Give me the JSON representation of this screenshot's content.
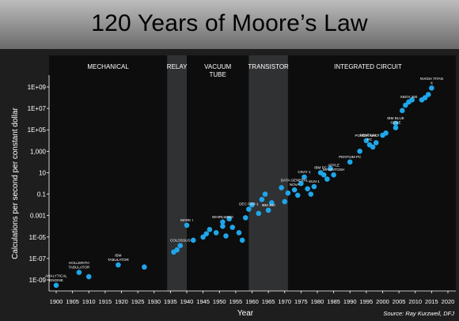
{
  "title": "120 Years of Moore’s Law",
  "colors": {
    "accent": "#1fa6ea",
    "plot_bg": "#0d0d0d",
    "band": "#2f3133"
  },
  "chart_data": {
    "type": "scatter",
    "title": "120 Years of Moore’s Law",
    "xlabel": "Year",
    "ylabel": "Calculations per second per constant dollar",
    "xlim": [
      1897,
      2020
    ],
    "ylim": [
      -10,
      10
    ],
    "y_scale": "log10",
    "x_ticks": [
      1900,
      1905,
      1910,
      1915,
      1920,
      1925,
      1930,
      1935,
      1940,
      1945,
      1950,
      1955,
      1960,
      1965,
      1970,
      1975,
      1980,
      1985,
      1990,
      1995,
      2000,
      2005,
      2010,
      2015,
      2020
    ],
    "y_ticks": [
      {
        "label": "1E+09",
        "exp": 9
      },
      {
        "label": "1E+07",
        "exp": 7
      },
      {
        "label": "1E+05",
        "exp": 5
      },
      {
        "label": "1,000",
        "exp": 3
      },
      {
        "label": "10",
        "exp": 1
      },
      {
        "label": "0.1",
        "exp": -1
      },
      {
        "label": "0.001",
        "exp": -3
      },
      {
        "label": "1E-05",
        "exp": -5
      },
      {
        "label": "1E-07",
        "exp": -7
      },
      {
        "label": "1E-09",
        "exp": -9
      }
    ],
    "eras": [
      {
        "label": "MECHANICAL",
        "x0": 1897,
        "x1": 1934,
        "highlight": false
      },
      {
        "label": "RELAY",
        "x0": 1934,
        "x1": 1940,
        "highlight": true
      },
      {
        "label": "VACUUM TUBE",
        "x0": 1940,
        "x1": 1959,
        "highlight": false
      },
      {
        "label": "TRANSISTOR",
        "x0": 1959,
        "x1": 1971,
        "highlight": true
      },
      {
        "label": "INTEGRATED CIRCUIT",
        "x0": 1971,
        "x1": 2020,
        "highlight": false
      }
    ],
    "points": [
      {
        "x": 1900,
        "y": -9.5,
        "label": "ANALYTICAL ENGINE"
      },
      {
        "x": 1907,
        "y": -8.3,
        "label": "HOLLERITH TABULATOR"
      },
      {
        "x": 1910,
        "y": -8.7
      },
      {
        "x": 1919,
        "y": -7.6,
        "label": "IBM TABULATOR"
      },
      {
        "x": 1927,
        "y": -7.8
      },
      {
        "x": 1936,
        "y": -6.4
      },
      {
        "x": 1937,
        "y": -6.2
      },
      {
        "x": 1938,
        "y": -5.8,
        "label": "COLOSSUS"
      },
      {
        "x": 1940,
        "y": -3.9,
        "label": "MARK I"
      },
      {
        "x": 1942,
        "y": -5.3
      },
      {
        "x": 1945,
        "y": -5.0
      },
      {
        "x": 1946,
        "y": -4.7
      },
      {
        "x": 1947,
        "y": -4.3
      },
      {
        "x": 1949,
        "y": -4.6
      },
      {
        "x": 1951,
        "y": -3.6,
        "label": "WHIRLWIND"
      },
      {
        "x": 1951,
        "y": -4.0
      },
      {
        "x": 1952,
        "y": -4.9
      },
      {
        "x": 1953,
        "y": -3.3
      },
      {
        "x": 1954,
        "y": -4.1
      },
      {
        "x": 1956,
        "y": -4.6
      },
      {
        "x": 1957,
        "y": -5.3
      },
      {
        "x": 1958,
        "y": -3.2
      },
      {
        "x": 1959,
        "y": -2.4,
        "label": "DEC PDP-1"
      },
      {
        "x": 1960,
        "y": -2.0
      },
      {
        "x": 1962,
        "y": -2.8
      },
      {
        "x": 1963,
        "y": -1.5
      },
      {
        "x": 1964,
        "y": -1.0
      },
      {
        "x": 1965,
        "y": -2.5,
        "label": "IBM 360"
      },
      {
        "x": 1966,
        "y": -1.8
      },
      {
        "x": 1969,
        "y": -0.4
      },
      {
        "x": 1970,
        "y": -1.7
      },
      {
        "x": 1971,
        "y": -0.9
      },
      {
        "x": 1973,
        "y": -0.6,
        "label": "DATA GENERAL NOVA"
      },
      {
        "x": 1974,
        "y": -1.1
      },
      {
        "x": 1975,
        "y": 0.0
      },
      {
        "x": 1976,
        "y": 0.6,
        "label": "CRAY 1"
      },
      {
        "x": 1977,
        "y": -0.5
      },
      {
        "x": 1978,
        "y": -1.0
      },
      {
        "x": 1979,
        "y": -0.3,
        "label": "SUN-1"
      },
      {
        "x": 1981,
        "y": 1.0,
        "label": "IBM PC"
      },
      {
        "x": 1982,
        "y": 0.8
      },
      {
        "x": 1983,
        "y": 0.4
      },
      {
        "x": 1984,
        "y": 1.4
      },
      {
        "x": 1985,
        "y": 0.8,
        "label": "APPLE MACINTOSH"
      },
      {
        "x": 1990,
        "y": 2.0,
        "label": "PENTIUM PC"
      },
      {
        "x": 1993,
        "y": 3.0
      },
      {
        "x": 1995,
        "y": 4.0,
        "label": "POWER MAC"
      },
      {
        "x": 1996,
        "y": 3.6,
        "label": "PENTIUM II PC"
      },
      {
        "x": 1997,
        "y": 3.4
      },
      {
        "x": 1998,
        "y": 3.8
      },
      {
        "x": 2000,
        "y": 4.5
      },
      {
        "x": 2001,
        "y": 4.7
      },
      {
        "x": 2004,
        "y": 5.2,
        "label": "IBM BLUE GENE"
      },
      {
        "x": 2004,
        "y": 5.6
      },
      {
        "x": 2006,
        "y": 6.8
      },
      {
        "x": 2007,
        "y": 7.3
      },
      {
        "x": 2008,
        "y": 7.6,
        "label": "XBOX 360"
      },
      {
        "x": 2009,
        "y": 7.8
      },
      {
        "x": 2012,
        "y": 7.8
      },
      {
        "x": 2013,
        "y": 8.0
      },
      {
        "x": 2014,
        "y": 8.3
      },
      {
        "x": 2015,
        "y": 8.9,
        "label": "NVIDIA TITAN X"
      }
    ],
    "source": "Source: Ray Kurzweil, DFJ"
  }
}
